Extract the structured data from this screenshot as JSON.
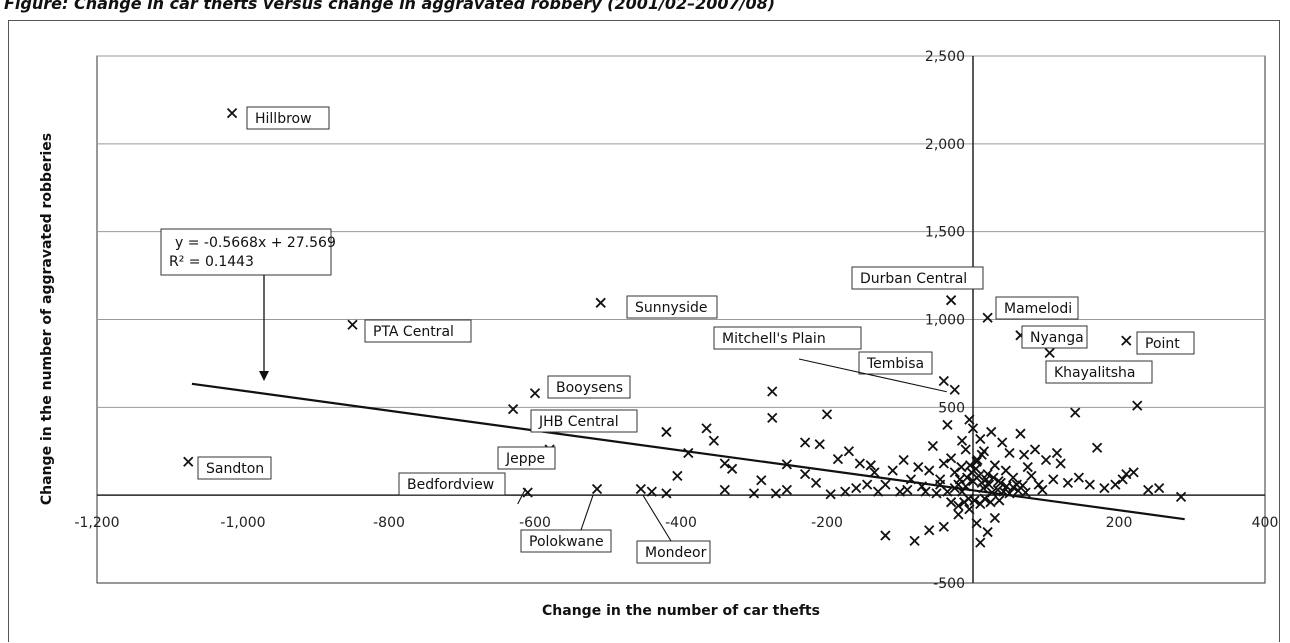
{
  "caption": "Figure: Change in car thefts versus change in aggravated robbery (2001/02–2007/08)",
  "chart_data": {
    "type": "scatter",
    "xlabel": "Change in the number of car thefts",
    "ylabel": "Change in the number of aggravated robberies",
    "xlim": [
      -1200,
      400
    ],
    "ylim": [
      -500,
      2500
    ],
    "xticks": [
      "-1,200",
      "-1,000",
      "-800",
      "-600",
      "-400",
      "-200",
      "200",
      "400"
    ],
    "yticks": [
      "-500",
      "500",
      "1,000",
      "1,500",
      "2,000",
      "2,500"
    ],
    "grid": "horizontal",
    "trendline": {
      "equation": "y = -0.5668x + 27.569",
      "r2": "R² = 0.1443",
      "slope": -0.5668,
      "intercept": 27.569,
      "x_range": [
        -1070,
        290
      ]
    },
    "labeled_points": [
      {
        "name": "Hillbrow",
        "x": -1015,
        "y": 2175
      },
      {
        "name": "PTA Central",
        "x": -850,
        "y": 970
      },
      {
        "name": "Sunnyside",
        "x": -510,
        "y": 1095
      },
      {
        "name": "Booysens",
        "x": -600,
        "y": 580
      },
      {
        "name": "JHB Central",
        "x": -630,
        "y": 490
      },
      {
        "name": "Jeppe",
        "x": -580,
        "y": 260
      },
      {
        "name": "Sandton",
        "x": -1075,
        "y": 190
      },
      {
        "name": "Bedfordview",
        "x": -610,
        "y": 15
      },
      {
        "name": "Polokwane",
        "x": -515,
        "y": 35
      },
      {
        "name": "Mondeor",
        "x": -455,
        "y": 35
      },
      {
        "name": "Durban Central",
        "x": -30,
        "y": 1110
      },
      {
        "name": "Mamelodi",
        "x": 20,
        "y": 1010
      },
      {
        "name": "Nyanga",
        "x": 65,
        "y": 910
      },
      {
        "name": "Point",
        "x": 210,
        "y": 880
      },
      {
        "name": "Khayalitsha",
        "x": 105,
        "y": 810
      },
      {
        "name": "Tembisa",
        "x": -40,
        "y": 650
      },
      {
        "name": "Mitchell's Plain",
        "x": -25,
        "y": 600
      }
    ],
    "points": [
      [
        -275,
        590
      ],
      [
        -275,
        440
      ],
      [
        -255,
        175
      ],
      [
        -230,
        300
      ],
      [
        -210,
        290
      ],
      [
        -200,
        460
      ],
      [
        -185,
        205
      ],
      [
        -170,
        250
      ],
      [
        -155,
        180
      ],
      [
        -140,
        170
      ],
      [
        -135,
        130
      ],
      [
        -145,
        60
      ],
      [
        -160,
        40
      ],
      [
        -175,
        20
      ],
      [
        -195,
        5
      ],
      [
        -215,
        70
      ],
      [
        -230,
        120
      ],
      [
        -255,
        30
      ],
      [
        -270,
        10
      ],
      [
        -300,
        10
      ],
      [
        -330,
        150
      ],
      [
        -340,
        180
      ],
      [
        -355,
        310
      ],
      [
        -365,
        380
      ],
      [
        -390,
        240
      ],
      [
        -405,
        110
      ],
      [
        -420,
        360
      ],
      [
        -420,
        10
      ],
      [
        -440,
        20
      ],
      [
        -340,
        30
      ],
      [
        -290,
        85
      ],
      [
        -120,
        60
      ],
      [
        -110,
        140
      ],
      [
        -95,
        200
      ],
      [
        -85,
        90
      ],
      [
        -75,
        160
      ],
      [
        -60,
        140
      ],
      [
        -55,
        280
      ],
      [
        -45,
        90
      ],
      [
        -40,
        180
      ],
      [
        -35,
        400
      ],
      [
        -30,
        210
      ],
      [
        -25,
        130
      ],
      [
        -20,
        60
      ],
      [
        -15,
        310
      ],
      [
        -10,
        260
      ],
      [
        -5,
        430
      ],
      [
        0,
        380
      ],
      [
        5,
        190
      ],
      [
        10,
        320
      ],
      [
        15,
        250
      ],
      [
        20,
        120
      ],
      [
        25,
        360
      ],
      [
        30,
        170
      ],
      [
        35,
        80
      ],
      [
        40,
        300
      ],
      [
        45,
        140
      ],
      [
        50,
        240
      ],
      [
        55,
        100
      ],
      [
        60,
        60
      ],
      [
        65,
        350
      ],
      [
        70,
        230
      ],
      [
        75,
        160
      ],
      [
        80,
        110
      ],
      [
        85,
        260
      ],
      [
        90,
        60
      ],
      [
        95,
        30
      ],
      [
        100,
        200
      ],
      [
        110,
        90
      ],
      [
        115,
        240
      ],
      [
        120,
        180
      ],
      [
        130,
        70
      ],
      [
        140,
        470
      ],
      [
        145,
        100
      ],
      [
        160,
        60
      ],
      [
        170,
        270
      ],
      [
        180,
        40
      ],
      [
        195,
        60
      ],
      [
        205,
        90
      ],
      [
        210,
        120
      ],
      [
        220,
        130
      ],
      [
        225,
        510
      ],
      [
        240,
        30
      ],
      [
        255,
        40
      ],
      [
        285,
        -10
      ],
      [
        -120,
        -230
      ],
      [
        -80,
        -260
      ],
      [
        -60,
        -200
      ],
      [
        -40,
        -180
      ],
      [
        -20,
        -110
      ],
      [
        -5,
        -80
      ],
      [
        5,
        -160
      ],
      [
        10,
        -270
      ],
      [
        20,
        -210
      ],
      [
        30,
        -130
      ],
      [
        -15,
        20
      ],
      [
        -10,
        50
      ],
      [
        0,
        80
      ],
      [
        8,
        110
      ],
      [
        14,
        40
      ],
      [
        18,
        90
      ],
      [
        22,
        60
      ],
      [
        26,
        15
      ],
      [
        -8,
        100
      ],
      [
        -2,
        130
      ],
      [
        4,
        150
      ],
      [
        12,
        70
      ],
      [
        -25,
        40
      ],
      [
        -18,
        90
      ],
      [
        28,
        100
      ],
      [
        34,
        30
      ],
      [
        38,
        70
      ],
      [
        42,
        20
      ],
      [
        46,
        50
      ],
      [
        -35,
        20
      ],
      [
        -45,
        60
      ],
      [
        -50,
        10
      ],
      [
        -65,
        20
      ],
      [
        -70,
        50
      ],
      [
        -90,
        30
      ],
      [
        -100,
        20
      ],
      [
        -130,
        20
      ],
      [
        50,
        10
      ],
      [
        55,
        45
      ],
      [
        62,
        25
      ],
      [
        68,
        55
      ],
      [
        72,
        15
      ],
      [
        -6,
        -20
      ],
      [
        2,
        -30
      ],
      [
        10,
        -50
      ],
      [
        16,
        -20
      ],
      [
        -12,
        -40
      ],
      [
        -20,
        -60
      ],
      [
        24,
        -40
      ],
      [
        36,
        -30
      ],
      [
        -30,
        -40
      ],
      [
        6,
        200
      ],
      [
        -4,
        170
      ],
      [
        12,
        230
      ],
      [
        -16,
        160
      ]
    ]
  }
}
